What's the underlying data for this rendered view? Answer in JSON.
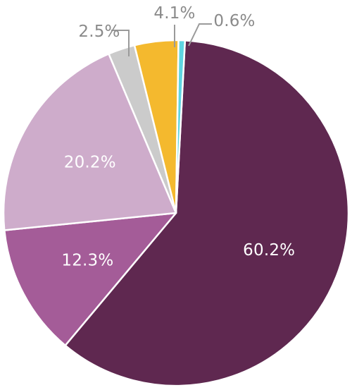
{
  "chart_data": {
    "type": "pie",
    "slices": [
      {
        "label": "60.2%",
        "value": 60.2,
        "color": "#5f2850"
      },
      {
        "label": "12.3%",
        "value": 12.3,
        "color": "#a45c98"
      },
      {
        "label": "20.2%",
        "value": 20.2,
        "color": "#ceaccb"
      },
      {
        "label": "2.5%",
        "value": 2.5,
        "color": "#cbcbcb"
      },
      {
        "label": "4.1%",
        "value": 4.1,
        "color": "#f4b92e"
      },
      {
        "label": "0.6%",
        "value": 0.6,
        "color": "#5ed5e2"
      }
    ],
    "start_angle_deg": 3,
    "direction": "clockwise",
    "legend": "none"
  }
}
